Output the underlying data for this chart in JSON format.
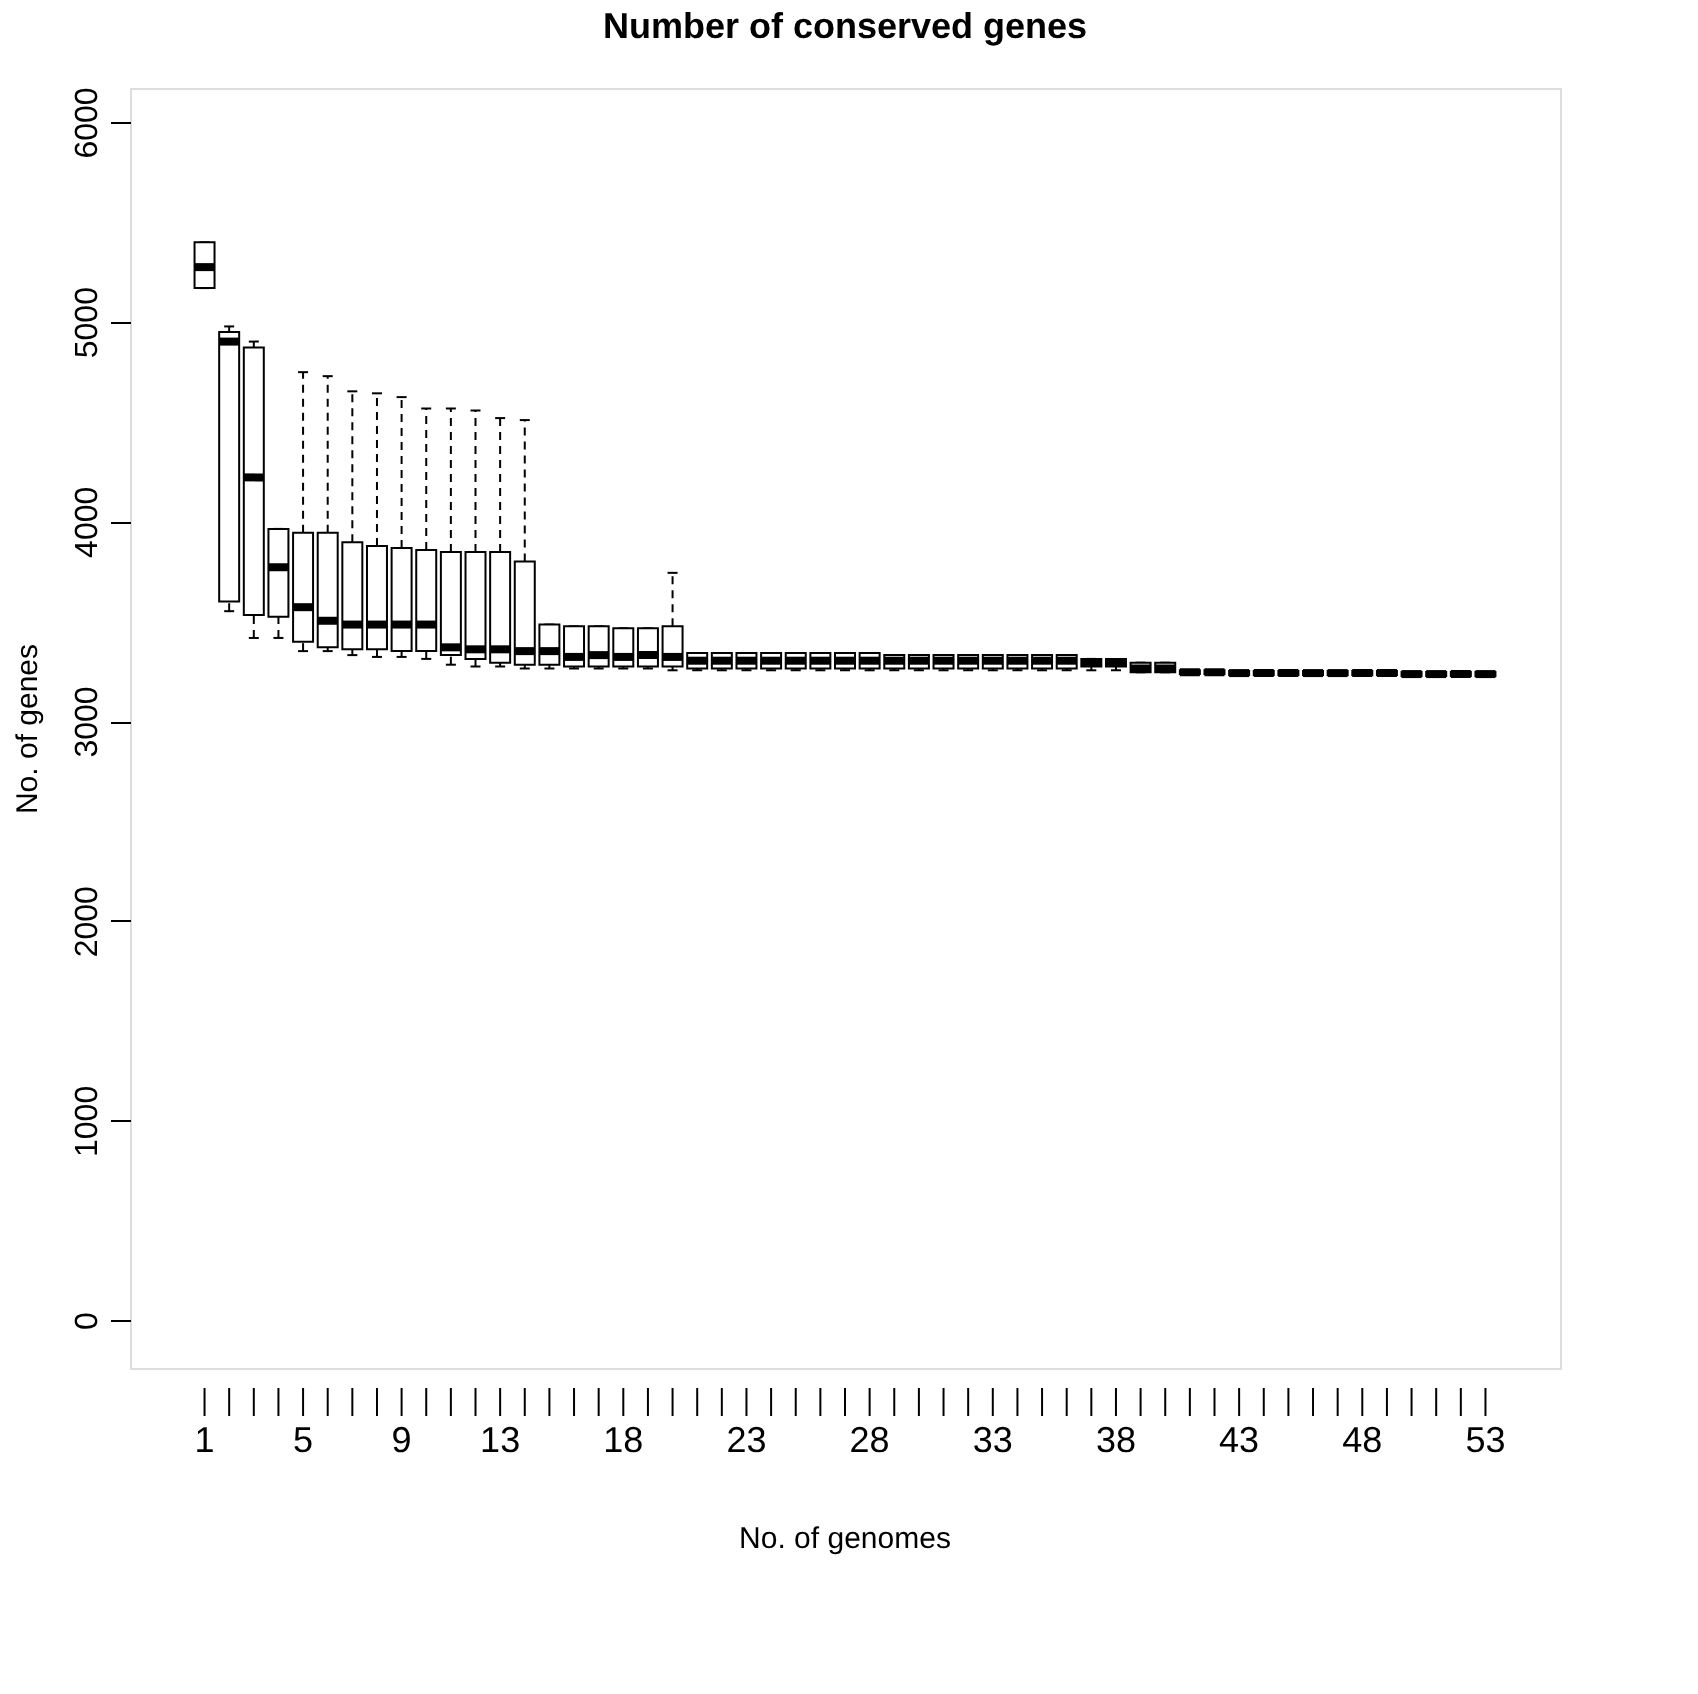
{
  "chart_data": {
    "type": "box",
    "title": "Number of conserved genes",
    "xlabel": "No. of genomes",
    "ylabel": "No. of genes",
    "categories": [
      "1",
      null,
      null,
      null,
      "5",
      null,
      null,
      null,
      "9",
      null,
      null,
      null,
      "13",
      null,
      null,
      null,
      null,
      "18",
      null,
      null,
      null,
      null,
      "23",
      null,
      null,
      null,
      null,
      "28",
      null,
      null,
      null,
      null,
      "33",
      null,
      null,
      null,
      null,
      "38",
      null,
      null,
      null,
      null,
      "43",
      null,
      null,
      null,
      null,
      "48",
      null,
      null,
      null,
      null,
      "53"
    ],
    "boxes": [
      {
        "low": 5168,
        "q1": 5168,
        "median": 5273,
        "q3": 5397,
        "high": 5397
      },
      {
        "low": 3550,
        "q1": 3598,
        "median": 4900,
        "q3": 4948,
        "high": 4976
      },
      {
        "low": 3416,
        "q1": 3531,
        "median": 4220,
        "q3": 4871,
        "high": 4900
      },
      {
        "low": 3416,
        "q1": 3522,
        "median": 3770,
        "q3": 3962,
        "high": 3962
      },
      {
        "low": 3350,
        "q1": 3397,
        "median": 3570,
        "q3": 3943,
        "high": 4747
      },
      {
        "low": 3350,
        "q1": 3369,
        "median": 3502,
        "q3": 3943,
        "high": 4727
      },
      {
        "low": 3330,
        "q1": 3359,
        "median": 3483,
        "q3": 3895,
        "high": 4651
      },
      {
        "low": 3321,
        "q1": 3359,
        "median": 3483,
        "q3": 3876,
        "high": 4641
      },
      {
        "low": 3321,
        "q1": 3350,
        "median": 3483,
        "q3": 3866,
        "high": 4622
      },
      {
        "low": 3311,
        "q1": 3350,
        "median": 3483,
        "q3": 3857,
        "high": 4565
      },
      {
        "low": 3282,
        "q1": 3330,
        "median": 3369,
        "q3": 3847,
        "high": 4565
      },
      {
        "low": 3273,
        "q1": 3311,
        "median": 3359,
        "q3": 3847,
        "high": 4555
      },
      {
        "low": 3273,
        "q1": 3292,
        "median": 3359,
        "q3": 3847,
        "high": 4517
      },
      {
        "low": 3263,
        "q1": 3282,
        "median": 3350,
        "q3": 3799,
        "high": 4507
      },
      {
        "low": 3263,
        "q1": 3282,
        "median": 3350,
        "q3": 3483,
        "high": 3483
      },
      {
        "low": 3263,
        "q1": 3273,
        "median": 3321,
        "q3": 3474,
        "high": 3474
      },
      {
        "low": 3263,
        "q1": 3273,
        "median": 3330,
        "q3": 3474,
        "high": 3474
      },
      {
        "low": 3263,
        "q1": 3273,
        "median": 3321,
        "q3": 3464,
        "high": 3464
      },
      {
        "low": 3263,
        "q1": 3273,
        "median": 3330,
        "q3": 3464,
        "high": 3464
      },
      {
        "low": 3254,
        "q1": 3273,
        "median": 3321,
        "q3": 3474,
        "high": 3742
      },
      {
        "low": 3254,
        "q1": 3263,
        "median": 3302,
        "q3": 3340,
        "high": 3340
      },
      {
        "low": 3254,
        "q1": 3263,
        "median": 3302,
        "q3": 3340,
        "high": 3340
      },
      {
        "low": 3254,
        "q1": 3263,
        "median": 3302,
        "q3": 3340,
        "high": 3340
      },
      {
        "low": 3254,
        "q1": 3263,
        "median": 3302,
        "q3": 3340,
        "high": 3340
      },
      {
        "low": 3254,
        "q1": 3263,
        "median": 3302,
        "q3": 3340,
        "high": 3340
      },
      {
        "low": 3254,
        "q1": 3263,
        "median": 3302,
        "q3": 3340,
        "high": 3340
      },
      {
        "low": 3254,
        "q1": 3263,
        "median": 3302,
        "q3": 3340,
        "high": 3340
      },
      {
        "low": 3254,
        "q1": 3263,
        "median": 3302,
        "q3": 3340,
        "high": 3340
      },
      {
        "low": 3254,
        "q1": 3263,
        "median": 3302,
        "q3": 3330,
        "high": 3330
      },
      {
        "low": 3254,
        "q1": 3263,
        "median": 3302,
        "q3": 3330,
        "high": 3330
      },
      {
        "low": 3254,
        "q1": 3263,
        "median": 3302,
        "q3": 3330,
        "high": 3330
      },
      {
        "low": 3254,
        "q1": 3263,
        "median": 3302,
        "q3": 3330,
        "high": 3330
      },
      {
        "low": 3254,
        "q1": 3263,
        "median": 3302,
        "q3": 3330,
        "high": 3330
      },
      {
        "low": 3254,
        "q1": 3263,
        "median": 3302,
        "q3": 3330,
        "high": 3330
      },
      {
        "low": 3254,
        "q1": 3263,
        "median": 3302,
        "q3": 3330,
        "high": 3330
      },
      {
        "low": 3254,
        "q1": 3263,
        "median": 3302,
        "q3": 3330,
        "high": 3330
      },
      {
        "low": 3254,
        "q1": 3273,
        "median": 3292,
        "q3": 3311,
        "high": 3311
      },
      {
        "low": 3254,
        "q1": 3273,
        "median": 3292,
        "q3": 3311,
        "high": 3311
      },
      {
        "low": 3244,
        "q1": 3244,
        "median": 3263,
        "q3": 3292,
        "high": 3292
      },
      {
        "low": 3244,
        "q1": 3244,
        "median": 3263,
        "q3": 3292,
        "high": 3292
      },
      {
        "low": 3235,
        "q1": 3235,
        "median": 3244,
        "q3": 3254,
        "high": 3254
      },
      {
        "low": 3235,
        "q1": 3235,
        "median": 3244,
        "q3": 3254,
        "high": 3254
      },
      {
        "low": 3230,
        "q1": 3230,
        "median": 3240,
        "q3": 3250,
        "high": 3250
      },
      {
        "low": 3230,
        "q1": 3230,
        "median": 3240,
        "q3": 3250,
        "high": 3250
      },
      {
        "low": 3230,
        "q1": 3230,
        "median": 3240,
        "q3": 3250,
        "high": 3250
      },
      {
        "low": 3230,
        "q1": 3230,
        "median": 3240,
        "q3": 3250,
        "high": 3250
      },
      {
        "low": 3230,
        "q1": 3230,
        "median": 3240,
        "q3": 3250,
        "high": 3250
      },
      {
        "low": 3230,
        "q1": 3230,
        "median": 3240,
        "q3": 3250,
        "high": 3250
      },
      {
        "low": 3230,
        "q1": 3230,
        "median": 3240,
        "q3": 3250,
        "high": 3250
      },
      {
        "low": 3225,
        "q1": 3225,
        "median": 3235,
        "q3": 3245,
        "high": 3245
      },
      {
        "low": 3225,
        "q1": 3225,
        "median": 3235,
        "q3": 3245,
        "high": 3245
      },
      {
        "low": 3225,
        "q1": 3225,
        "median": 3235,
        "q3": 3245,
        "high": 3245
      },
      {
        "low": 3225,
        "q1": 3225,
        "median": 3235,
        "q3": 3245,
        "high": 3245
      }
    ],
    "ylim": [
      -240,
      6170
    ],
    "yticks": [
      0,
      1000,
      2000,
      3000,
      4000,
      5000,
      6000
    ],
    "grid": false,
    "line_style": "dashed"
  }
}
